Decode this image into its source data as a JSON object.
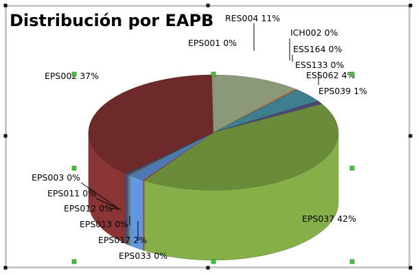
{
  "chart_data": {
    "type": "pie",
    "title": "Distribución por EAPB",
    "slices": [
      {
        "label": "RES004 11%",
        "name": "RES004",
        "percent": 11,
        "color": "#8c9978"
      },
      {
        "label": "ICH002 0%",
        "name": "ICH002",
        "percent": 0,
        "color": "#b39a74"
      },
      {
        "label": "ESS164 0%",
        "name": "ESS164",
        "percent": 0,
        "color": "#9c8c5c"
      },
      {
        "label": "ESS133 0%",
        "name": "ESS133",
        "percent": 0,
        "color": "#9b5b4c"
      },
      {
        "label": "ESS062 4%",
        "name": "ESS062",
        "percent": 4,
        "color": "#3e7f8f"
      },
      {
        "label": "EPS039 1%",
        "name": "EPS039",
        "percent": 1,
        "color": "#4f4675"
      },
      {
        "label": "EPS037 42%",
        "name": "EPS037",
        "percent": 42,
        "color": "#6a8c3a"
      },
      {
        "label": "EPS033 0%",
        "name": "EPS033",
        "percent": 0,
        "color": "#a53c2c"
      },
      {
        "label": "EPS017 2%",
        "name": "EPS017",
        "percent": 2,
        "color": "#4c79b4"
      },
      {
        "label": "EPS013 0%",
        "name": "EPS013",
        "percent": 0,
        "color": "#6e8458"
      },
      {
        "label": "EPS012 0%",
        "name": "EPS012",
        "percent": 0,
        "color": "#52667a"
      },
      {
        "label": "EPS011 0%",
        "name": "EPS011",
        "percent": 0,
        "color": "#3f5b82"
      },
      {
        "label": "EPS003 0%",
        "name": "EPS003",
        "percent": 0,
        "color": "#2e4e78"
      },
      {
        "label": "EPS002 37%",
        "name": "EPS002",
        "percent": 37,
        "color": "#6e2a2a"
      },
      {
        "label": "EPS001 0%",
        "name": "EPS001",
        "percent": 0,
        "color": "#8d9a7a"
      }
    ]
  }
}
